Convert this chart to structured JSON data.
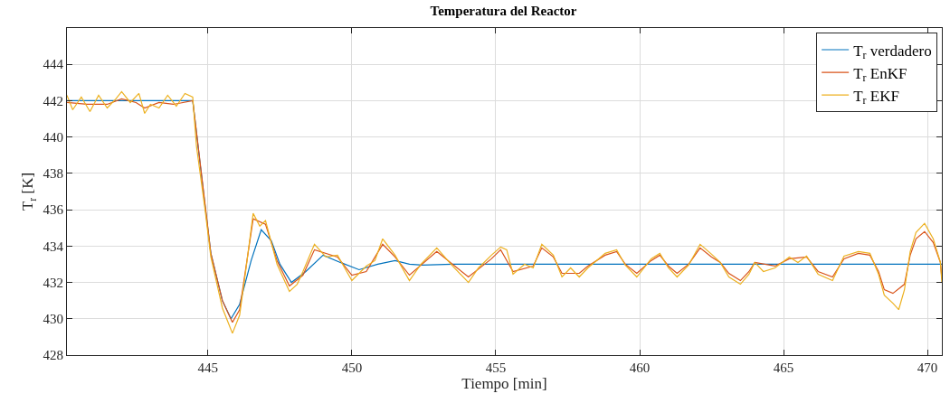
{
  "chart_data": {
    "type": "line",
    "title": "Temperatura del Reactor",
    "xlabel": "Tiempo [min]",
    "ylabel": "T$_{r}$ [K]",
    "xlim": [
      440.1,
      470.5
    ],
    "ylim": [
      428,
      446
    ],
    "xticks": [
      445,
      450,
      455,
      460,
      465,
      470
    ],
    "yticks": [
      428,
      430,
      432,
      434,
      436,
      438,
      440,
      442,
      444
    ],
    "grid": true,
    "legend": "top right",
    "line_style": "solid",
    "marker": "none",
    "series": [
      {
        "name": "T$_{r}$ verdadero",
        "color": "#0072bd",
        "x": [
          440.1,
          444.47,
          444.9,
          445.1,
          445.5,
          445.8,
          446.1,
          446.5,
          446.85,
          447.2,
          447.5,
          447.9,
          448.4,
          449.0,
          449.6,
          450.25,
          450.9,
          451.5,
          452.0,
          452.45,
          453.5,
          470.5
        ],
        "values": [
          442.0,
          442.0,
          436.2,
          433.6,
          431.0,
          430.0,
          430.8,
          433.2,
          434.9,
          434.3,
          433.0,
          432.0,
          432.6,
          433.5,
          433.1,
          432.7,
          433.0,
          433.2,
          433.0,
          432.95,
          433.0,
          433.0
        ]
      },
      {
        "name": "T$_{r}$ EnKF",
        "color": "#d95319",
        "x": [
          440.1,
          440.8,
          441.5,
          442.0,
          442.5,
          442.8,
          443.3,
          443.8,
          444.47,
          444.9,
          445.1,
          445.5,
          445.85,
          446.1,
          446.57,
          447.0,
          447.4,
          447.83,
          448.3,
          448.7,
          449.5,
          450.0,
          450.5,
          451.07,
          451.5,
          452.0,
          452.95,
          453.5,
          454.05,
          454.85,
          455.17,
          455.6,
          456.3,
          456.6,
          457.0,
          457.3,
          457.9,
          458.2,
          458.8,
          459.2,
          459.5,
          459.9,
          460.4,
          460.7,
          461.0,
          461.3,
          461.7,
          462.1,
          462.5,
          462.8,
          463.1,
          463.5,
          463.8,
          464.0,
          464.7,
          465.2,
          465.8,
          466.2,
          466.7,
          467.1,
          467.6,
          468.0,
          468.3,
          468.5,
          468.8,
          469.2,
          469.4,
          469.6,
          469.9,
          470.2,
          470.45,
          470.5
        ],
        "values": [
          441.9,
          441.8,
          441.8,
          442.1,
          441.9,
          441.6,
          441.9,
          441.8,
          442.0,
          436.3,
          433.6,
          431.0,
          429.8,
          430.5,
          435.5,
          435.2,
          433.2,
          431.8,
          432.4,
          433.8,
          433.4,
          432.4,
          432.6,
          434.1,
          433.4,
          432.4,
          433.7,
          433.0,
          432.3,
          433.3,
          433.8,
          432.6,
          432.9,
          433.9,
          433.4,
          432.5,
          432.5,
          432.9,
          433.5,
          433.7,
          433.0,
          432.5,
          433.2,
          433.5,
          432.9,
          432.5,
          433.0,
          433.9,
          433.4,
          433.1,
          432.5,
          432.1,
          432.6,
          433.1,
          432.9,
          433.3,
          433.4,
          432.6,
          432.3,
          433.3,
          433.6,
          433.5,
          432.6,
          431.6,
          431.4,
          431.9,
          433.5,
          434.4,
          434.8,
          434.2,
          433.1,
          432.2
        ]
      },
      {
        "name": "T$_{r}$ EKF",
        "color": "#edb120",
        "x": [
          440.1,
          440.3,
          440.6,
          440.9,
          441.2,
          441.5,
          441.8,
          442.0,
          442.3,
          442.6,
          442.8,
          443.0,
          443.3,
          443.6,
          443.9,
          444.2,
          444.47,
          444.6,
          444.9,
          445.1,
          445.5,
          445.85,
          446.1,
          446.3,
          446.57,
          446.8,
          447.0,
          447.4,
          447.83,
          448.1,
          448.3,
          448.7,
          449.1,
          449.5,
          450.0,
          450.5,
          450.8,
          451.07,
          451.5,
          452.0,
          452.4,
          452.95,
          453.5,
          454.05,
          454.4,
          454.85,
          455.17,
          455.38,
          455.6,
          456.0,
          456.3,
          456.6,
          457.0,
          457.3,
          457.6,
          457.9,
          458.2,
          458.5,
          458.8,
          459.2,
          459.5,
          459.9,
          460.4,
          460.7,
          461.0,
          461.3,
          461.7,
          462.1,
          462.5,
          462.8,
          463.1,
          463.5,
          463.8,
          464.0,
          464.3,
          464.7,
          465.2,
          465.5,
          465.8,
          466.2,
          466.7,
          467.1,
          467.6,
          468.0,
          468.3,
          468.5,
          468.8,
          469.0,
          469.2,
          469.4,
          469.6,
          469.9,
          470.2,
          470.45,
          470.5
        ],
        "values": [
          442.3,
          441.5,
          442.2,
          441.4,
          442.3,
          441.6,
          442.1,
          442.5,
          441.9,
          442.4,
          441.3,
          441.8,
          441.6,
          442.3,
          441.7,
          442.4,
          442.2,
          439.5,
          436.0,
          433.4,
          430.6,
          429.2,
          430.2,
          432.5,
          435.8,
          435.1,
          435.4,
          433.0,
          431.5,
          431.9,
          432.6,
          434.1,
          433.4,
          433.5,
          432.1,
          432.9,
          433.2,
          434.4,
          433.5,
          432.1,
          433.0,
          433.9,
          432.9,
          432.0,
          432.8,
          433.5,
          433.95,
          433.8,
          432.45,
          433.0,
          432.8,
          434.1,
          433.5,
          432.3,
          432.8,
          432.3,
          432.8,
          433.2,
          433.6,
          433.8,
          432.95,
          432.3,
          433.3,
          433.6,
          432.8,
          432.3,
          432.95,
          434.1,
          433.55,
          433.1,
          432.3,
          431.9,
          432.45,
          433.1,
          432.6,
          432.8,
          433.4,
          433.1,
          433.45,
          432.45,
          432.1,
          433.45,
          433.7,
          433.6,
          432.45,
          431.3,
          430.85,
          430.5,
          431.6,
          433.7,
          434.75,
          435.25,
          434.4,
          433.1,
          432.0
        ]
      }
    ]
  }
}
